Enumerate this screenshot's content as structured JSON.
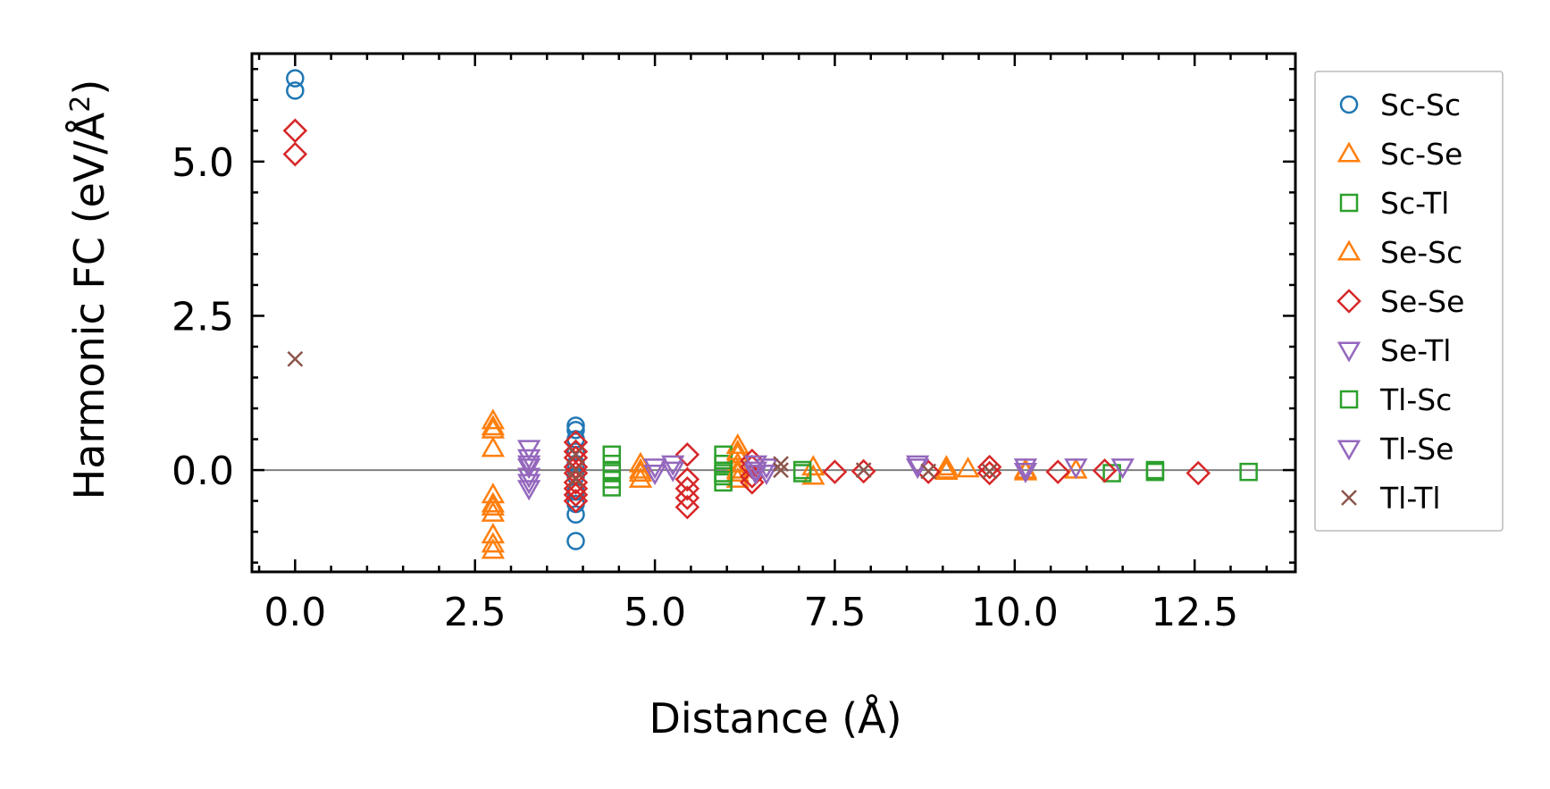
{
  "chart_data": {
    "type": "scatter",
    "xlabel": "Distance (Å)",
    "ylabel_main": "Harmonic FC (eV/Å",
    "ylabel_sup": "2",
    "ylabel_close": ")",
    "xlim": [
      -0.6,
      13.9
    ],
    "ylim": [
      -1.65,
      6.75
    ],
    "xticks": [
      0.0,
      2.5,
      5.0,
      7.5,
      10.0,
      12.5
    ],
    "xtick_labels": [
      "0.0",
      "2.5",
      "5.0",
      "7.5",
      "10.0",
      "12.5"
    ],
    "yticks": [
      0.0,
      2.5,
      5.0
    ],
    "ytick_labels": [
      "0.0",
      "2.5",
      "5.0"
    ],
    "minor_x_step": 0.5,
    "minor_y_step": 0.5,
    "zero_line": true,
    "legend_position": "outside-right",
    "series": [
      {
        "name": "Sc-Sc",
        "marker": "circle",
        "color": "#1f77b4",
        "points": [
          [
            0.0,
            6.35
          ],
          [
            0.0,
            6.15
          ],
          [
            3.9,
            0.72
          ],
          [
            3.9,
            0.65
          ],
          [
            3.9,
            0.5
          ],
          [
            3.9,
            0.3
          ],
          [
            3.9,
            0.1
          ],
          [
            3.9,
            -0.1
          ],
          [
            3.9,
            -0.35
          ],
          [
            3.9,
            -0.55
          ],
          [
            3.9,
            -0.72
          ],
          [
            3.9,
            -1.15
          ]
        ]
      },
      {
        "name": "Sc-Se",
        "marker": "triangle-up",
        "color": "#ff7f0e",
        "points": [
          [
            2.75,
            0.8
          ],
          [
            2.75,
            0.7
          ],
          [
            2.75,
            0.35
          ],
          [
            2.75,
            -0.4
          ],
          [
            2.75,
            -0.6
          ],
          [
            2.75,
            -0.7
          ],
          [
            2.75,
            -1.05
          ],
          [
            2.75,
            -1.2
          ],
          [
            2.75,
            -1.3
          ],
          [
            4.8,
            0.1
          ],
          [
            4.8,
            -0.05
          ],
          [
            4.8,
            -0.15
          ],
          [
            6.15,
            0.4
          ],
          [
            6.15,
            0.25
          ],
          [
            6.15,
            0.1
          ],
          [
            6.15,
            -0.05
          ],
          [
            6.15,
            -0.15
          ],
          [
            7.2,
            0.05
          ],
          [
            7.2,
            -0.1
          ],
          [
            9.05,
            0.05
          ],
          [
            9.05,
            -0.02
          ],
          [
            9.35,
            0.02
          ],
          [
            10.15,
            -0.03
          ],
          [
            10.85,
            0.0
          ]
        ]
      },
      {
        "name": "Sc-Tl",
        "marker": "square",
        "color": "#2ca02c",
        "points": [
          [
            4.4,
            0.25
          ],
          [
            4.4,
            0.1
          ],
          [
            4.4,
            -0.05
          ],
          [
            4.4,
            -0.15
          ],
          [
            4.4,
            -0.28
          ],
          [
            5.95,
            0.25
          ],
          [
            5.95,
            0.1
          ],
          [
            5.95,
            -0.05
          ],
          [
            5.95,
            -0.2
          ],
          [
            7.05,
            0.0
          ],
          [
            11.35,
            -0.05
          ],
          [
            11.95,
            -0.03
          ],
          [
            13.25,
            -0.03
          ]
        ]
      },
      {
        "name": "Se-Sc",
        "marker": "triangle-up",
        "color": "#ff7f0e",
        "points": [
          [
            2.75,
            0.65
          ],
          [
            2.75,
            -0.55
          ],
          [
            4.8,
            0.0
          ],
          [
            6.15,
            0.3
          ],
          [
            6.15,
            0.0
          ],
          [
            9.05,
            0.0
          ],
          [
            10.15,
            0.0
          ]
        ]
      },
      {
        "name": "Se-Se",
        "marker": "diamond",
        "color": "#d62728",
        "points": [
          [
            0.0,
            5.5
          ],
          [
            0.0,
            5.12
          ],
          [
            3.9,
            0.45
          ],
          [
            3.9,
            0.3
          ],
          [
            3.9,
            0.2
          ],
          [
            3.9,
            0.05
          ],
          [
            3.9,
            -0.05
          ],
          [
            3.9,
            -0.2
          ],
          [
            3.9,
            -0.3
          ],
          [
            3.9,
            -0.4
          ],
          [
            3.9,
            -0.5
          ],
          [
            5.45,
            0.25
          ],
          [
            5.45,
            -0.15
          ],
          [
            5.45,
            -0.3
          ],
          [
            5.45,
            -0.45
          ],
          [
            5.45,
            -0.6
          ],
          [
            6.35,
            0.15
          ],
          [
            6.35,
            0.05
          ],
          [
            6.35,
            -0.1
          ],
          [
            6.35,
            -0.2
          ],
          [
            7.5,
            -0.03
          ],
          [
            7.9,
            -0.02
          ],
          [
            8.8,
            -0.03
          ],
          [
            9.65,
            0.05
          ],
          [
            9.65,
            -0.05
          ],
          [
            10.6,
            -0.03
          ],
          [
            11.25,
            -0.01
          ],
          [
            12.55,
            -0.05
          ]
        ]
      },
      {
        "name": "Se-Tl",
        "marker": "triangle-down",
        "color": "#9467bd",
        "points": [
          [
            3.25,
            0.35
          ],
          [
            3.25,
            0.2
          ],
          [
            3.25,
            0.05
          ],
          [
            3.25,
            -0.1
          ],
          [
            3.25,
            -0.2
          ],
          [
            3.25,
            -0.3
          ],
          [
            5.0,
            0.05
          ],
          [
            5.0,
            -0.05
          ],
          [
            6.4,
            0.1
          ],
          [
            6.4,
            -0.05
          ],
          [
            6.55,
            0.05
          ],
          [
            8.65,
            0.1
          ],
          [
            10.15,
            0.05
          ],
          [
            10.85,
            0.05
          ]
        ]
      },
      {
        "name": "Tl-Sc",
        "marker": "square",
        "color": "#2ca02c",
        "points": [
          [
            4.4,
            0.0
          ],
          [
            5.95,
            -0.1
          ],
          [
            7.05,
            -0.05
          ],
          [
            11.95,
            0.0
          ]
        ]
      },
      {
        "name": "Tl-Se",
        "marker": "triangle-down",
        "color": "#9467bd",
        "points": [
          [
            3.25,
            0.1
          ],
          [
            5.25,
            0.1
          ],
          [
            5.25,
            0.0
          ],
          [
            6.4,
            0.0
          ],
          [
            6.55,
            -0.05
          ],
          [
            8.65,
            0.05
          ],
          [
            10.15,
            -0.02
          ],
          [
            11.5,
            0.05
          ]
        ]
      },
      {
        "name": "Tl-Tl",
        "marker": "x",
        "color": "#8c564b",
        "points": [
          [
            0.0,
            1.8
          ],
          [
            3.9,
            0.25
          ],
          [
            3.9,
            0.0
          ],
          [
            3.9,
            -0.15
          ],
          [
            6.75,
            0.1
          ],
          [
            6.75,
            0.0
          ],
          [
            7.9,
            0.0
          ],
          [
            8.8,
            -0.02
          ],
          [
            9.65,
            -0.02
          ]
        ]
      }
    ]
  }
}
